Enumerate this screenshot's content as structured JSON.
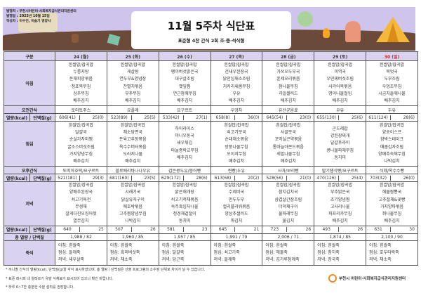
{
  "header": {
    "publisher": "발행처 : 부천시어린이·사회복지급식관리지원센터",
    "date": "발행일 : 2025년 10월 15일",
    "author": "작성자 : 이수진, 이슬기 영양사",
    "title": "11월 5주차 식단표",
    "subtitle": "표준형 4찬 간식 2회 조·중·석식형"
  },
  "labels": {
    "category": "구분",
    "breakfast": "아침",
    "am_snack": "오전간식",
    "kcal": "열량(kcal)",
    "protein": "단백질(g)",
    "lunch": "점심",
    "pm_snack": "오후간식",
    "dinner": "저녁",
    "total": "총 열량 / 단백질",
    "porridge": "죽식"
  },
  "colors": {
    "header_bg": "#d9d3ef",
    "holiday": "#e02020",
    "banner": "#cfc5ec",
    "ground": "#6b4a3a"
  },
  "days": [
    {
      "label": "24 (월)",
      "holiday": false,
      "breakfast": [
        "흰쌀밥/잡곡밥",
        "누룽지탕",
        "돈채피망볶음",
        "청포묵무침",
        "상추무침",
        "배추김치"
      ],
      "am_snack": "토마토주스",
      "b_kcal": "606(41)",
      "b_pro": "25(0)",
      "lunch": [
        "흰쌀밥/잡곡밥",
        "달걀국",
        "순살가자미찜",
        "굴소스버섯조림",
        "가지양념무침",
        "배추김치"
      ],
      "pm_snack": "또띠아호떡/요구르트",
      "l_kcal": "521(181)",
      "l_pro": "29(3)",
      "dinner": [
        "흰쌀밥/잡곡밥",
        "양배추된장국",
        "쇠고기육전",
        "무생채",
        "잘게다진오징어젓",
        "열무김치"
      ],
      "d_kcal": "640",
      "d_pro": "25",
      "total": "1,988 / 82",
      "porridge": [
        "아침: 흰쌀죽",
        "점심: 들깨죽",
        "저녁: 새우살죽"
      ]
    },
    {
      "label": "25 (화)",
      "holiday": false,
      "breakfast": [
        "흰쌀밥/잡곡밥",
        "게살탕",
        "연두부&양념장",
        "잔멸치볶음",
        "부추무침",
        "배추김치"
      ],
      "am_snack": "요플레",
      "b_kcal": "523(89)",
      "b_pro": "25(5)",
      "lunch": [
        "흰쌀밥/잡곡밥",
        "채소당면국",
        "돈육고추장볶음",
        "옥수수버터볶음",
        "도라지나물",
        "배추김치"
      ],
      "pm_snack": "블루베리바나나우유",
      "l_kcal": "681(160)",
      "l_pro": "23(5)",
      "dinner": [
        "흰쌀밥/잡곡밥",
        "시래기국",
        "닭살유자구이",
        "애호박볶음",
        "고추찜양념무침",
        "나박김치"
      ],
      "d_kcal": "507",
      "d_pro": "26",
      "total": "1,960 / 85",
      "porridge": [
        "아침: 흰쌀죽",
        "점심: 흑미버섯죽",
        "저녁: 채소죽"
      ]
    },
    {
      "label": "26 (수)",
      "holiday": false,
      "breakfast": [
        "흰쌀밥/잡곡밥",
        "팽이버섯맑은국",
        "대구살조림",
        "깻잎찜",
        "연근참깨무침",
        "배추김치"
      ],
      "am_snack": "요구르트",
      "b_kcal": "533(42)",
      "b_pro": "27(1)",
      "lunch": [
        "하이라이스",
        "미니우동국",
        "새우튀김",
        "마늘종락교무침",
        "배추김치"
      ],
      "pm_snack": "검은콩두유/붕어빵",
      "l_kcal": "629(172)",
      "l_pro": "28(6)",
      "dinner": [
        "흰쌀밥/잡곡밥",
        "맑은채개장",
        "쇠고기적채볶음",
        "숙주흑임자나물",
        "청경채겉절이",
        "동치미"
      ],
      "d_kcal": "581",
      "d_pro": "23",
      "total": "1,957 / 85",
      "porridge": [
        "아침: 흰쌀죽",
        "점심: 달걀죽",
        "저녁: 당근죽"
      ]
    },
    {
      "label": "27 (목)",
      "holiday": false,
      "breakfast": [
        "흰쌀밥/잡곡밥",
        "건새우된장국",
        "닭안심채소조림",
        "치커리새콤무침",
        "우유",
        "배추김치"
      ],
      "am_snack": "우엉차",
      "b_kcal": "658(8)",
      "b_pro": "36(0)",
      "lunch": [
        "흰쌀밥/잡곡밥",
        "쇠고기뭇국",
        "순대채소볶음",
        "방풍나물무침",
        "오이지무침",
        "배추김치"
      ],
      "pm_snack": "찐빵/두유",
      "l_kcal": "613(68)",
      "l_pro": "20(2)",
      "dinner": [
        "흰쌀밥/잡곡밥",
        "수제비국",
        "만두두부",
        "컬리플라워볶음",
        "양상추샐러드",
        "파김치"
      ],
      "d_kcal": "645",
      "d_pro": "21",
      "total": "1,991 / 79",
      "porridge": [
        "아침: 흰쌀죽",
        "점심: 쇠고기죽",
        "저녁: 들깨죽"
      ]
    },
    {
      "label": "28 (금)",
      "holiday": false,
      "breakfast": [
        "흰쌀밥/잡곡밥",
        "가쓰오두부국",
        "훈제오리볶음",
        "참나물무침",
        "과일샐러드",
        "배추김치"
      ],
      "am_snack": "유산균음료",
      "b_kcal": "645(54)",
      "b_pro": "23(0)",
      "lunch": [
        "흰쌀밥/잡곡밥",
        "사골뭇국",
        "꼬막실곤약볶음",
        "통마늘아몬드볶음",
        "세발나물무침",
        "배추김치"
      ],
      "pm_snack": "사과/보리빵",
      "l_kcal": "528(56)",
      "l_pro": "21(0)",
      "dinner": [
        "흰쌀밥/잡곡밥",
        "참치김치국",
        "삼겹살간장조림",
        "더덕채구이",
        "물파래무침",
        "물김치"
      ],
      "d_kcal": "723",
      "d_pro": "26",
      "total": "2,006 / 71",
      "porridge": [
        "아침: 흰쌀죽",
        "점심: 해물죽",
        "저녁: 김가루참깨죽"
      ]
    },
    {
      "label": "29 (토)",
      "holiday": false,
      "breakfast": [
        "흰쌀밥/잡곡밥",
        "미역국",
        "우민찌버섯조림",
        "사각어묵볶음",
        "명이나물절임",
        "배추김치"
      ],
      "am_snack": "우유",
      "b_kcal": "655(130)",
      "b_pro": "25(6)",
      "lunch": [
        "곤드레밥",
        "강된장찌개",
        "달걀후라이",
        "콩나물파채무침",
        "동치미"
      ],
      "pm_snack": "딸기잼식빵/요구르트",
      "l_kcal": "470(126)",
      "l_pro": "25(4)",
      "dinner": [
        "흰쌀밥/잡곡밥",
        "부추맑은국",
        "조기양념찜",
        "고사리나물",
        "파프리카무침",
        "배추김치"
      ],
      "d_kcal": "493",
      "d_pro": "26",
      "total": "1,874 / 85",
      "porridge": [
        "아침: 흰쌀죽",
        "점심: 참치죽",
        "저녁: 장국죽"
      ]
    },
    {
      "label": "30 (일)",
      "holiday": true,
      "breakfast": [
        "흰쌀밥/잡곡밥",
        "북엇국",
        "두부조림",
        "우엉조무침",
        "시금치들깨나물",
        "배추김치"
      ],
      "am_snack": "두유",
      "b_kcal": "611(124)",
      "b_pro": "28(6)",
      "lunch": [
        "흰쌀밥/잡곡밥",
        "양송이스프",
        "함박스테이크",
        "매콤감자조림",
        "양배추숙채무침",
        "나박김치"
      ],
      "pm_snack": "식혜/옥수수빵",
      "l_kcal": "703(32)",
      "l_pro": "26(0)",
      "dinner": [
        "흰쌀밥/잡곡밥",
        "해물짬뽕국",
        "고추잡채&꽃빵",
        "가지양파볶음",
        "취나물무침",
        "배추김치"
      ],
      "d_kcal": "631",
      "d_pro": "30",
      "total": "2,100 / 90",
      "porridge": [
        "아침: 흰쌀죽",
        "점심: 호두타락죽",
        "저녁: 채소죽"
      ]
    }
  ],
  "notes": [
    "* 끼니별 간식의 열량(kcal), 단백질(g)을 각각 표시하였으며, 총 열량 / 단백질은 산출 프로그램의 소수점 단위로 차이가 날 수 있습니다.",
    "* 표준 레시피 내 알레르기 유발 식재료가 표시되어 있으니 확인 바랍니다.",
    "* 하루 6~7잔 충분한 수분 섭취를 권장합니다."
  ],
  "footer_logo": "부천시 어린이·사회복지급식관리지원센터"
}
